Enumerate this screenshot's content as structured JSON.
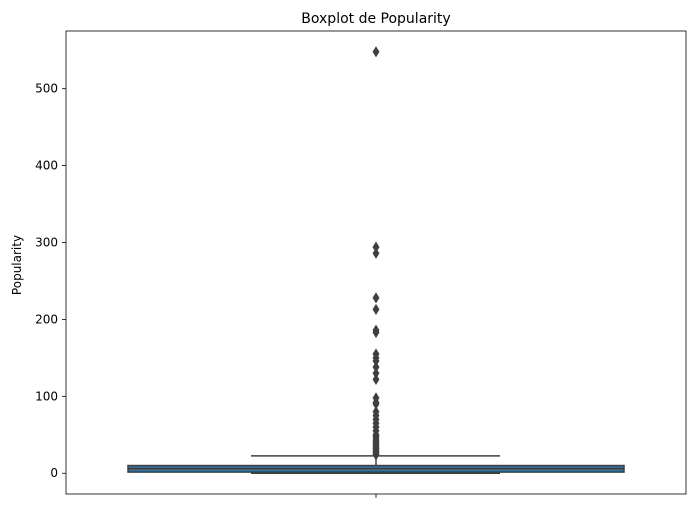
{
  "chart_data": {
    "type": "boxplot",
    "title": "Boxplot de Popularity",
    "xlabel": "",
    "ylabel": "Popularity",
    "ylim": [
      -27,
      575
    ],
    "yticks": [
      0,
      100,
      200,
      300,
      400,
      500
    ],
    "grid": false,
    "series": [
      {
        "values_summary": {
          "whisker_low": 0.0,
          "q1": 1.5,
          "median": 6.0,
          "q3": 10.0,
          "whisker_high": 22.5
        },
        "outliers": [
          24,
          26,
          28,
          30,
          32,
          34,
          36,
          38,
          40,
          42,
          45,
          48,
          50,
          55,
          60,
          65,
          70,
          75,
          80,
          90,
          92,
          98,
          122,
          130,
          138,
          146,
          150,
          155,
          183,
          186,
          213,
          228,
          286,
          294,
          548
        ]
      }
    ],
    "colors": {
      "box_fill": "#3274a1",
      "lines": "#3f3f3f",
      "outlier": "#3f3f3f"
    }
  }
}
